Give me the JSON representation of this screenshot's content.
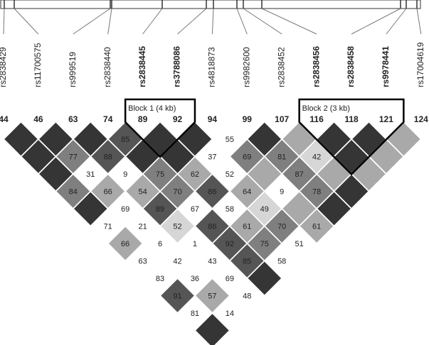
{
  "markers": [
    {
      "name": "rs2838429",
      "number": 44
    },
    {
      "name": "rs11700575",
      "number": 46
    },
    {
      "name": "rs999519",
      "number": 63
    },
    {
      "name": "rs2838440",
      "number": 74
    },
    {
      "name": "rs2838445",
      "number": 89
    },
    {
      "name": "rs3788086",
      "number": 92
    },
    {
      "name": "rs4818873",
      "number": 94
    },
    {
      "name": "rs9982600",
      "number": 99
    },
    {
      "name": "rs2838452",
      "number": 107
    },
    {
      "name": "rs2838456",
      "number": 116
    },
    {
      "name": "rs2838458",
      "number": 118
    },
    {
      "name": "rs9978441",
      "number": 121
    },
    {
      "name": "rs17004619",
      "number": 124
    }
  ],
  "blocks": [
    {
      "label": "Block 1 (4 kb)",
      "markers": [
        89,
        92
      ]
    },
    {
      "label": "Block 2 (3 kb)",
      "markers": [
        116,
        118,
        121
      ]
    }
  ],
  "ld": {
    "rows": [
      [
        null,
        null,
        null,
        85,
        null,
        null,
        55,
        null,
        null,
        null,
        null,
        null
      ],
      [
        null,
        77,
        88,
        null,
        null,
        37,
        69,
        81,
        42,
        null,
        null
      ],
      [
        null,
        31,
        9,
        75,
        62,
        52,
        null,
        87,
        null,
        null
      ],
      [
        84,
        66,
        54,
        70,
        86,
        64,
        9,
        78,
        null
      ],
      [
        null,
        69,
        89,
        67,
        58,
        49,
        null,
        null
      ],
      [
        71,
        21,
        52,
        86,
        61,
        70,
        61
      ],
      [
        66,
        6,
        1,
        92,
        75,
        51
      ],
      [
        63,
        42,
        43,
        85,
        58
      ],
      [
        83,
        36,
        69,
        null
      ],
      [
        91,
        57,
        48
      ],
      [
        81,
        14
      ],
      [
        null
      ]
    ],
    "colors": [
      [
        "#353535",
        "#353535",
        "#353535",
        "#555555",
        "#353535",
        "#353535",
        "#ffffff",
        "#353535",
        "#a9a9a9",
        "#353535",
        "#353535",
        "#a9a9a9"
      ],
      [
        "#353535",
        "#7f7f7f",
        "#555555",
        "#353535",
        "#353535",
        "#ffffff",
        "#7f7f7f",
        "#7f7f7f",
        "#d6d6d6",
        "#353535",
        "#a9a9a9"
      ],
      [
        "#353535",
        "#ffffff",
        "#ffffff",
        "#7f7f7f",
        "#a9a9a9",
        "#ffffff",
        "#a9a9a9",
        "#7f7f7f",
        "#a9a9a9",
        "#a9a9a9"
      ],
      [
        "#7f7f7f",
        "#a9a9a9",
        "#a9a9a9",
        "#7f7f7f",
        "#555555",
        "#a9a9a9",
        "#ffffff",
        "#7f7f7f",
        "#353535"
      ],
      [
        "#353535",
        "#ffffff",
        "#555555",
        "#ffffff",
        "#ffffff",
        "#d6d6d6",
        "#a9a9a9",
        "#353535"
      ],
      [
        "#ffffff",
        "#ffffff",
        "#d6d6d6",
        "#555555",
        "#a9a9a9",
        "#7f7f7f",
        "#a9a9a9"
      ],
      [
        "#a9a9a9",
        "#ffffff",
        "#ffffff",
        "#555555",
        "#7f7f7f",
        "#ffffff"
      ],
      [
        "#ffffff",
        "#ffffff",
        "#ffffff",
        "#555555",
        "#ffffff"
      ],
      [
        "#ffffff",
        "#ffffff",
        "#ffffff",
        "#353535"
      ],
      [
        "#555555",
        "#a9a9a9",
        "#ffffff"
      ],
      [
        "#ffffff",
        "#ffffff"
      ],
      [
        "#353535"
      ]
    ]
  }
}
